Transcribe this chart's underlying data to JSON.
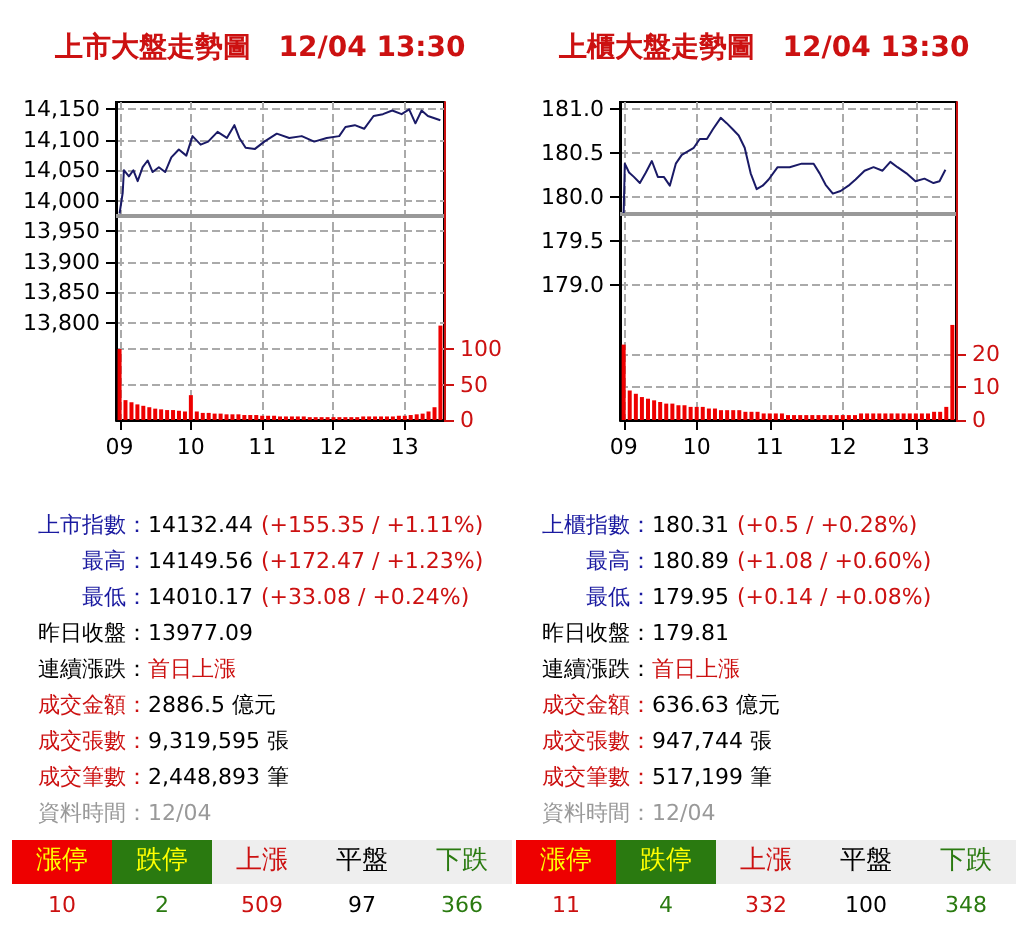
{
  "chart_data": [
    {
      "type": "line",
      "title": "上市大盤走勢圖　12/04 13:30",
      "xlim": [
        8.95,
        13.55
      ],
      "xticks": [
        {
          "value": 9,
          "label": "09"
        },
        {
          "value": 10,
          "label": "10"
        },
        {
          "value": 11,
          "label": "11"
        },
        {
          "value": 12,
          "label": "12"
        },
        {
          "value": 13,
          "label": "13"
        }
      ],
      "ylim": [
        13640,
        14162
      ],
      "yticks": [
        {
          "value": 13800,
          "label": "13,800"
        },
        {
          "value": 13850,
          "label": "13,850"
        },
        {
          "value": 13900,
          "label": "13,900"
        },
        {
          "value": 13950,
          "label": "13,950"
        },
        {
          "value": 14000,
          "label": "14,000"
        },
        {
          "value": 14050,
          "label": "14,050"
        },
        {
          "value": 14100,
          "label": "14,100"
        },
        {
          "value": 14150,
          "label": "14,150"
        }
      ],
      "y2lim": [
        0,
        448
      ],
      "y2ticks": [
        0,
        50,
        100
      ],
      "grid": true,
      "ref_lines": [
        {
          "axis": "y",
          "value": 13977.09,
          "color": "#999999"
        }
      ],
      "series": [
        {
          "type": "line",
          "color": "#1a1a66",
          "x": [
            9,
            9.044,
            9.061,
            9.131,
            9.193,
            9.254,
            9.324,
            9.394,
            9.464,
            9.551,
            9.639,
            9.726,
            9.831,
            9.936,
            10.023,
            10.137,
            10.242,
            10.374,
            10.505,
            10.61,
            10.68,
            10.768,
            10.899,
            11.03,
            11.205,
            11.38,
            11.555,
            11.73,
            11.905,
            12.08,
            12.168,
            12.299,
            12.43,
            12.562,
            12.693,
            12.824,
            12.956,
            13.061,
            13.149,
            13.236,
            13.324,
            13.499
          ],
          "values": [
            13979,
            14013,
            14050,
            14040,
            14050,
            14032,
            14055,
            14066,
            14047,
            14055,
            14047,
            14071,
            14084,
            14074,
            14106,
            14092,
            14097,
            14113,
            14103,
            14124,
            14103,
            14087,
            14085,
            14097,
            14110,
            14103,
            14106,
            14097,
            14103,
            14106,
            14121,
            14124,
            14118,
            14139,
            14142,
            14148,
            14142,
            14150,
            14127,
            14148,
            14139,
            14132
          ]
        },
        {
          "type": "bar",
          "axis": "y2",
          "color": "#ee0000",
          "x": [
            9,
            9.083,
            9.167,
            9.25,
            9.333,
            9.417,
            9.5,
            9.583,
            9.667,
            9.75,
            9.833,
            9.917,
            10,
            10.083,
            10.167,
            10.25,
            10.333,
            10.417,
            10.5,
            10.583,
            10.667,
            10.75,
            10.833,
            10.917,
            11,
            11.083,
            11.167,
            11.25,
            11.333,
            11.417,
            11.5,
            11.583,
            11.667,
            11.75,
            11.833,
            11.917,
            12,
            12.083,
            12.167,
            12.25,
            12.333,
            12.417,
            12.5,
            12.583,
            12.667,
            12.75,
            12.833,
            12.917,
            13,
            13.083,
            13.167,
            13.25,
            13.333,
            13.417,
            13.5
          ],
          "values": [
            100,
            28,
            25,
            22,
            20,
            18,
            16,
            15,
            14,
            14,
            13,
            12,
            35,
            12,
            10,
            10,
            9,
            9,
            8,
            8,
            8,
            7,
            7,
            7,
            6,
            6,
            6,
            5,
            5,
            5,
            5,
            5,
            4,
            4,
            4,
            4,
            4,
            4,
            4,
            4,
            4,
            5,
            5,
            5,
            5,
            5,
            5,
            6,
            6,
            7,
            8,
            9,
            12,
            18,
            133
          ]
        }
      ]
    },
    {
      "type": "line",
      "title": "上櫃大盤走勢圖　12/04 13:30",
      "xlim": [
        8.95,
        13.55
      ],
      "xticks": [
        {
          "value": 9,
          "label": "09"
        },
        {
          "value": 10,
          "label": "10"
        },
        {
          "value": 11,
          "label": "11"
        },
        {
          "value": 12,
          "label": "12"
        },
        {
          "value": 13,
          "label": "13"
        }
      ],
      "ylim": [
        177.47,
        181.08
      ],
      "yticks": [
        {
          "value": 179,
          "label": "179.0"
        },
        {
          "value": 179.5,
          "label": "179.5"
        },
        {
          "value": 180,
          "label": "180.0"
        },
        {
          "value": 180.5,
          "label": "180.5"
        },
        {
          "value": 181,
          "label": "181.0"
        }
      ],
      "y2lim": [
        0,
        97
      ],
      "y2ticks": [
        0,
        10,
        20
      ],
      "grid": true,
      "ref_lines": [
        {
          "axis": "y",
          "value": 179.81,
          "color": "#999999"
        }
      ],
      "series": [
        {
          "type": "line",
          "color": "#1a1a66",
          "x": [
            9,
            9.016,
            9.074,
            9.14,
            9.222,
            9.304,
            9.386,
            9.468,
            9.55,
            9.632,
            9.714,
            9.796,
            9.878,
            9.96,
            10.042,
            10.14,
            10.222,
            10.329,
            10.41,
            10.493,
            10.575,
            10.657,
            10.739,
            10.821,
            10.903,
            10.985,
            11.108,
            11.273,
            11.437,
            11.601,
            11.683,
            11.765,
            11.864,
            11.97,
            12.093,
            12.175,
            12.298,
            12.421,
            12.544,
            12.651,
            12.749,
            12.872,
            12.995,
            13.118,
            13.242,
            13.324,
            13.405
          ],
          "values": [
            179.82,
            180.38,
            180.28,
            180.23,
            180.16,
            180.28,
            180.41,
            180.23,
            180.23,
            180.13,
            180.38,
            180.48,
            180.52,
            180.56,
            180.66,
            180.66,
            180.77,
            180.9,
            180.84,
            180.77,
            180.7,
            180.56,
            180.27,
            180.09,
            180.13,
            180.2,
            180.34,
            180.34,
            180.38,
            180.38,
            180.27,
            180.14,
            180.04,
            180.07,
            180.14,
            180.2,
            180.3,
            180.34,
            180.3,
            180.4,
            180.34,
            180.27,
            180.18,
            180.21,
            180.16,
            180.18,
            180.31
          ]
        },
        {
          "type": "bar",
          "axis": "y2",
          "color": "#ee0000",
          "x": [
            9,
            9.083,
            9.167,
            9.25,
            9.333,
            9.417,
            9.5,
            9.583,
            9.667,
            9.75,
            9.833,
            9.917,
            10,
            10.083,
            10.167,
            10.25,
            10.333,
            10.417,
            10.5,
            10.583,
            10.667,
            10.75,
            10.833,
            10.917,
            11,
            11.083,
            11.167,
            11.25,
            11.333,
            11.417,
            11.5,
            11.583,
            11.667,
            11.75,
            11.833,
            11.917,
            12,
            12.083,
            12.167,
            12.25,
            12.333,
            12.417,
            12.5,
            12.583,
            12.667,
            12.75,
            12.833,
            12.917,
            13,
            13.083,
            13.167,
            13.25,
            13.333,
            13.417,
            13.5
          ],
          "values": [
            23,
            9,
            8,
            7,
            6.5,
            6,
            5.5,
            5,
            5,
            4.5,
            4.5,
            4,
            4,
            4,
            3.5,
            3.5,
            3,
            3,
            3,
            3,
            2.5,
            2.5,
            2.5,
            2,
            2,
            2,
            2,
            1.5,
            1.5,
            1.5,
            1.5,
            1.5,
            1.5,
            1.5,
            1.5,
            1.5,
            1.5,
            1.5,
            1.5,
            2,
            2,
            2,
            2,
            2,
            2,
            2,
            2,
            2,
            2,
            2,
            2,
            2.5,
            2.5,
            4,
            29
          ]
        }
      ]
    },
    {
      "type": "other",
      "annotations": [
        "上市指數：14132.44 (+155.35 / +1.11%)",
        "最高：14149.56 (+172.47 / +1.23%)",
        "最低：14010.17 (+33.08 / +0.24%)",
        "昨日收盤：13977.09",
        "連續漲跌：首日上漲",
        "成交金額：2886.5 億元",
        "成交張數：9,319,595 張",
        "成交筆數：2,448,893 筆",
        "資料時間：12/04"
      ],
      "categories": [
        "漲停",
        "跌停",
        "上漲",
        "平盤",
        "下跌"
      ],
      "values": [
        10,
        2,
        509,
        97,
        366
      ],
      "data_labels": true
    },
    {
      "type": "other",
      "annotations": [
        "上櫃指數：180.31 (+0.5 / +0.28%)",
        "最高：180.89 (+1.08 / +0.60%)",
        "最低：179.95 (+0.14 / +0.08%)",
        "昨日收盤：179.81",
        "連續漲跌：首日上漲",
        "成交金額：636.63 億元",
        "成交張數：947,744 張",
        "成交筆數：517,199 筆",
        "資料時間：12/04"
      ],
      "categories": [
        "漲停",
        "跌停",
        "上漲",
        "平盤",
        "下跌"
      ],
      "values": [
        11,
        4,
        332,
        100,
        348
      ],
      "data_labels": true
    }
  ]
}
